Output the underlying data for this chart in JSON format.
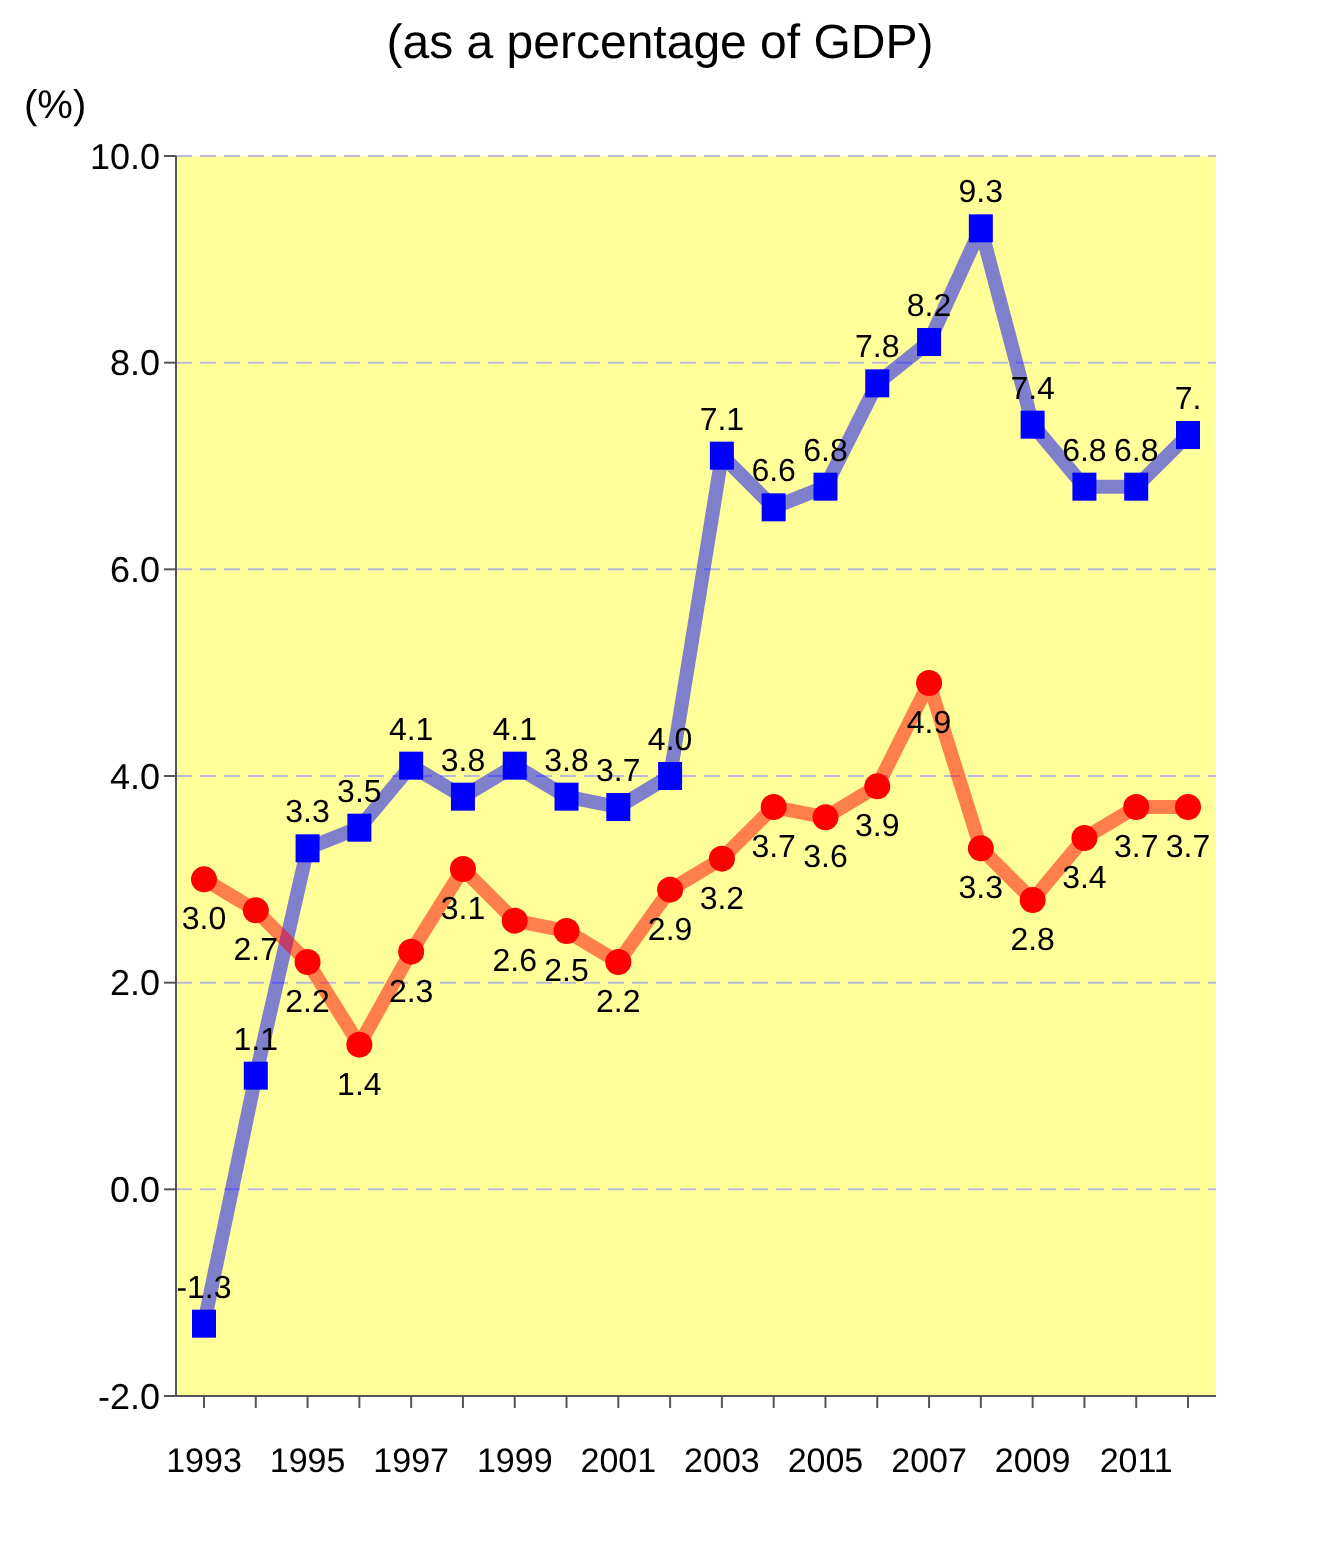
{
  "chart_data": {
    "type": "line",
    "title": "(as a percentage of GDP)",
    "ylabel": "(%)",
    "categories": [
      "1993",
      null,
      "1995",
      null,
      "1997",
      null,
      "1999",
      null,
      "2001",
      null,
      "2003",
      null,
      "2005",
      null,
      "2007",
      null,
      "2009",
      null,
      "2011",
      null
    ],
    "series": [
      {
        "color": "#0000ff",
        "marker": "square",
        "values": [
          -1.3,
          1.1,
          3.3,
          3.5,
          4.1,
          3.8,
          4.1,
          3.8,
          3.7,
          4.0,
          7.1,
          6.6,
          6.8,
          7.8,
          8.2,
          9.3,
          7.4,
          6.8,
          6.8,
          7.3
        ],
        "value_labels": [
          "-1.3",
          "1.1",
          "3.3",
          "3.5",
          "4.1",
          "3.8",
          "4.1",
          "3.8",
          "3.7",
          "4.0",
          "7.1",
          "6.6",
          "6.8",
          "7.8",
          "8.2",
          "9.3",
          "7.4",
          "6.8",
          "6.8",
          "7."
        ]
      },
      {
        "color": "#ff0000",
        "marker": "circle",
        "values": [
          3.0,
          2.7,
          2.2,
          1.4,
          2.3,
          3.1,
          2.6,
          2.5,
          2.2,
          2.9,
          3.2,
          3.7,
          3.6,
          3.9,
          4.9,
          3.3,
          2.8,
          3.4,
          3.7,
          3.7
        ],
        "value_labels": [
          "3.0",
          "2.7",
          "2.2",
          "1.4",
          "2.3",
          "3.1",
          "2.6",
          "2.5",
          "2.2",
          "2.9",
          "3.2",
          "3.7",
          "3.6",
          "3.9",
          "4.9",
          "3.3",
          "2.8",
          "3.4",
          "3.7",
          "3.7"
        ]
      }
    ],
    "ylim": [
      -2,
      10
    ],
    "yticks": [
      {
        "value": -2,
        "label": "-2.0"
      },
      {
        "value": 0,
        "label": "0.0"
      },
      {
        "value": 2,
        "label": "2.0"
      },
      {
        "value": 4,
        "label": "4.0"
      },
      {
        "value": 6,
        "label": "6.0"
      },
      {
        "value": 8,
        "label": "8.0"
      },
      {
        "value": 10,
        "label": "10.0"
      }
    ],
    "grid": "y"
  }
}
